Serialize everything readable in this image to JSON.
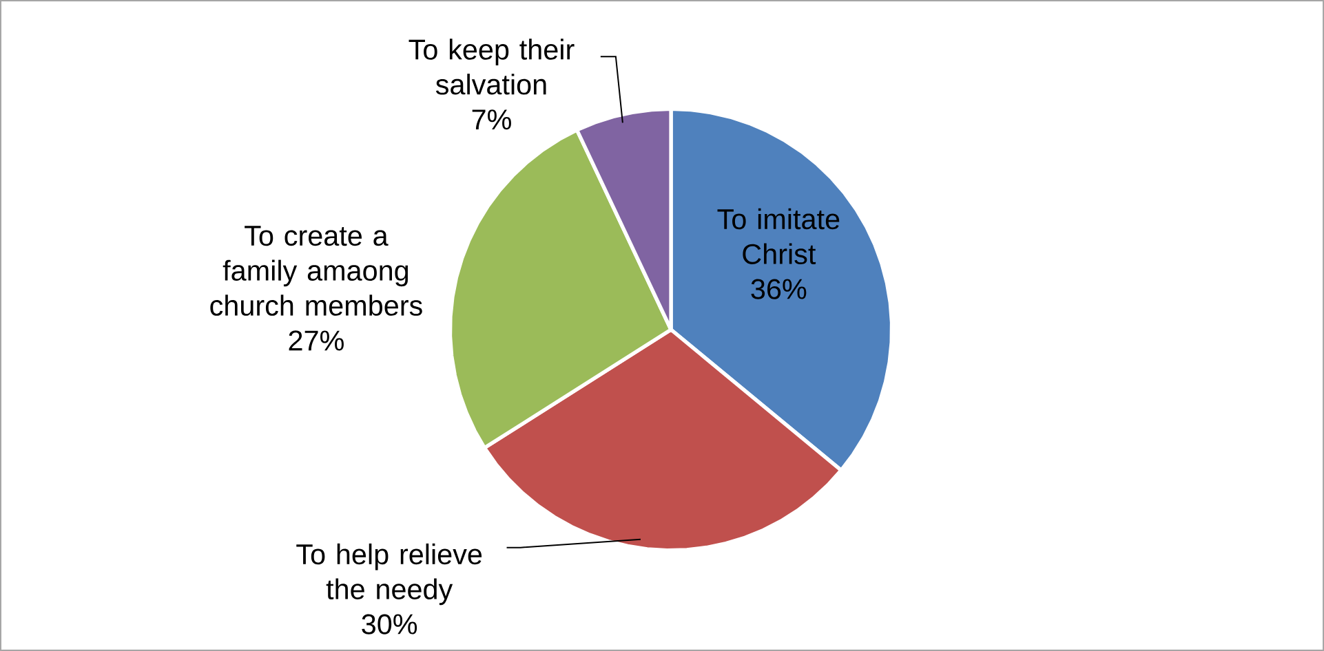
{
  "chart_data": {
    "type": "pie",
    "categories": [
      "To imitate Christ",
      "To help relieve the needy",
      "To create a family amaong church members",
      "To keep their salvation"
    ],
    "values": [
      36,
      30,
      27,
      7
    ],
    "colors": [
      "#4f81bd",
      "#c0504d",
      "#9bbb59",
      "#8064a2"
    ],
    "value_labels": [
      "36%",
      "30%",
      "27%",
      "7%"
    ]
  }
}
